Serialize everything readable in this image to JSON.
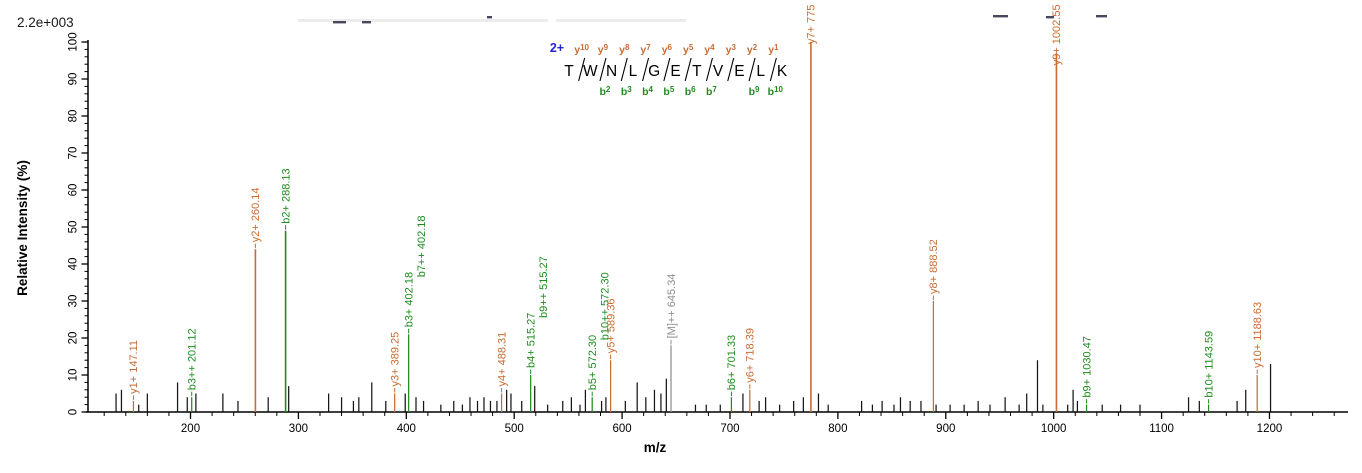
{
  "header": {
    "scale_label": "2.2e+003"
  },
  "peptide": {
    "charge_label": "2+",
    "residues": [
      "T",
      "W",
      "N",
      "L",
      "G",
      "E",
      "T",
      "V",
      "E",
      "L",
      "K"
    ],
    "gaps": [
      {
        "y": "y10",
        "b": null
      },
      {
        "y": "y9",
        "b": "b2"
      },
      {
        "y": "y8",
        "b": "b3"
      },
      {
        "y": "y7",
        "b": "b4"
      },
      {
        "y": "y6",
        "b": "b5"
      },
      {
        "y": "y5",
        "b": "b6"
      },
      {
        "y": "y4",
        "b": "b7"
      },
      {
        "y": "y3",
        "b": null
      },
      {
        "y": "y2",
        "b": "b9"
      },
      {
        "y": "y1",
        "b": "b10"
      }
    ]
  },
  "chart_data": {
    "type": "bar",
    "subtype": "ms2-fragmentation-spectrum",
    "title": "",
    "xlabel": "m/z",
    "ylabel": "Relative  Intensity (%)",
    "xlim": [
      105,
      1270
    ],
    "ylim": [
      0,
      100
    ],
    "x_ticks": [
      200,
      300,
      400,
      500,
      600,
      700,
      800,
      900,
      1000,
      1100,
      1200
    ],
    "y_ticks": [
      0,
      10,
      20,
      30,
      40,
      50,
      60,
      70,
      80,
      90,
      100
    ],
    "x_minor_step": 20,
    "y_minor_step": 2,
    "grid": false,
    "legend": "none",
    "peaks": [
      {
        "mz": 147.11,
        "intensity": 3,
        "type": "y",
        "labels": [
          "y1+ 147.11"
        ]
      },
      {
        "mz": 201.12,
        "intensity": 4,
        "type": "b",
        "labels": [
          "b3++ 201.12"
        ]
      },
      {
        "mz": 260.14,
        "intensity": 44,
        "type": "y",
        "labels": [
          "y2+ 260.14"
        ]
      },
      {
        "mz": 288.13,
        "intensity": 49,
        "type": "b",
        "labels": [
          "b2+ 288.13"
        ]
      },
      {
        "mz": 389.25,
        "intensity": 5,
        "type": "y",
        "labels": [
          "y3+ 389.25"
        ]
      },
      {
        "mz": 402.18,
        "intensity": 21,
        "type": "b",
        "labels": [
          "b3+ 402.18",
          "b7++ 402.18"
        ]
      },
      {
        "mz": 488.31,
        "intensity": 5,
        "type": "y",
        "labels": [
          "y4+ 488.31"
        ]
      },
      {
        "mz": 515.27,
        "intensity": 10,
        "type": "b",
        "labels": [
          "b4+ 515.27",
          "b9++ 515.27"
        ]
      },
      {
        "mz": 572.3,
        "intensity": 4,
        "type": "b",
        "labels": [
          "b5+ 572.30",
          "b10++ 572.30"
        ]
      },
      {
        "mz": 589.36,
        "intensity": 14,
        "type": "y",
        "labels": [
          "y5+ 589.36"
        ]
      },
      {
        "mz": 645.34,
        "intensity": 18,
        "type": "precursor",
        "labels": [
          "[M]++ 645.34"
        ]
      },
      {
        "mz": 701.33,
        "intensity": 4,
        "type": "b",
        "labels": [
          "b6+ 701.33"
        ]
      },
      {
        "mz": 718.39,
        "intensity": 6,
        "type": "y",
        "labels": [
          "y6+ 718.39"
        ]
      },
      {
        "mz": 775,
        "intensity": 100,
        "type": "y",
        "labels": [
          "y7+ 775"
        ]
      },
      {
        "mz": 888.52,
        "intensity": 30,
        "type": "y",
        "labels": [
          "y8+ 888.52"
        ]
      },
      {
        "mz": 1002.55,
        "intensity": 97,
        "type": "y",
        "labels": [
          "y9+ 1002.55"
        ]
      },
      {
        "mz": 1030.47,
        "intensity": 2,
        "type": "b",
        "labels": [
          "b9+ 1030.47"
        ]
      },
      {
        "mz": 1143.59,
        "intensity": 2,
        "type": "b",
        "labels": [
          "b10+ 1143.59"
        ]
      },
      {
        "mz": 1188.63,
        "intensity": 10,
        "type": "y",
        "labels": [
          "y10+ 1188.63"
        ]
      }
    ],
    "unassigned_peaks": [
      [
        131,
        5
      ],
      [
        136,
        6
      ],
      [
        152,
        2
      ],
      [
        160,
        5
      ],
      [
        188,
        8
      ],
      [
        197,
        4
      ],
      [
        205,
        5
      ],
      [
        230,
        5
      ],
      [
        244,
        3
      ],
      [
        272,
        4
      ],
      [
        291,
        7
      ],
      [
        328,
        5
      ],
      [
        340,
        4
      ],
      [
        351,
        3
      ],
      [
        356,
        4
      ],
      [
        368,
        8
      ],
      [
        381,
        3
      ],
      [
        399,
        5
      ],
      [
        409,
        4
      ],
      [
        416,
        3
      ],
      [
        432,
        2
      ],
      [
        444,
        3
      ],
      [
        452,
        2
      ],
      [
        459,
        4
      ],
      [
        466,
        3
      ],
      [
        472,
        4
      ],
      [
        478,
        3
      ],
      [
        484,
        3
      ],
      [
        493,
        6
      ],
      [
        497,
        5
      ],
      [
        507,
        3
      ],
      [
        519,
        7
      ],
      [
        531,
        2
      ],
      [
        545,
        3
      ],
      [
        553,
        4
      ],
      [
        561,
        2
      ],
      [
        566,
        6
      ],
      [
        581,
        3
      ],
      [
        585,
        4
      ],
      [
        603,
        3
      ],
      [
        614,
        8
      ],
      [
        622,
        4
      ],
      [
        630,
        6
      ],
      [
        636,
        5
      ],
      [
        641,
        9
      ],
      [
        668,
        2
      ],
      [
        678,
        2
      ],
      [
        691,
        2
      ],
      [
        712,
        5
      ],
      [
        727,
        3
      ],
      [
        733,
        4
      ],
      [
        746,
        2
      ],
      [
        759,
        3
      ],
      [
        768,
        4
      ],
      [
        782,
        5
      ],
      [
        791,
        2
      ],
      [
        822,
        3
      ],
      [
        832,
        2
      ],
      [
        841,
        3
      ],
      [
        852,
        2
      ],
      [
        858,
        4
      ],
      [
        867,
        3
      ],
      [
        877,
        3
      ],
      [
        891,
        2
      ],
      [
        904,
        2
      ],
      [
        917,
        2
      ],
      [
        930,
        3
      ],
      [
        941,
        2
      ],
      [
        955,
        4
      ],
      [
        968,
        2
      ],
      [
        975,
        5
      ],
      [
        985,
        14
      ],
      [
        990,
        2
      ],
      [
        1013,
        2
      ],
      [
        1018,
        6
      ],
      [
        1022,
        3
      ],
      [
        1045,
        2
      ],
      [
        1062,
        2
      ],
      [
        1080,
        2
      ],
      [
        1125,
        4
      ],
      [
        1135,
        3
      ],
      [
        1170,
        3
      ],
      [
        1178,
        6
      ],
      [
        1201,
        13
      ]
    ]
  },
  "colors": {
    "y_ion": "#c96c33",
    "b_ion": "#1f8c1f",
    "precursor": "#8f8f8f",
    "unassigned": "#161616",
    "charge": "#2525cc",
    "axis": "#000000",
    "background": "#ffffff",
    "artifact_dark": "#33334d",
    "artifact_light": "#e4e4e4"
  },
  "artifacts": {
    "light_strips": [
      [
        298,
        19,
        250,
        3
      ],
      [
        556,
        19,
        130,
        3
      ]
    ],
    "dark_dashes": [
      [
        333,
        21,
        13
      ],
      [
        362,
        21,
        9
      ],
      [
        487,
        16,
        5
      ],
      [
        993,
        15,
        15
      ],
      [
        1046,
        16,
        8
      ],
      [
        1096,
        15,
        11
      ]
    ]
  }
}
